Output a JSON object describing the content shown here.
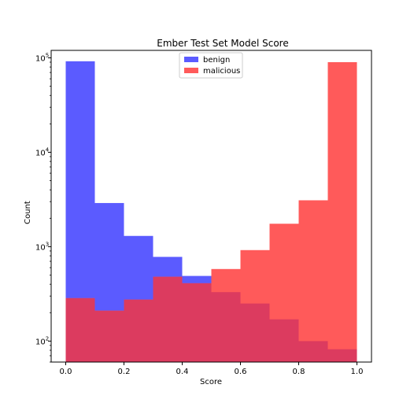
{
  "chart_data": {
    "type": "bar",
    "title": "Ember Test Set Model Score",
    "xlabel": "Score",
    "ylabel": "Count",
    "xlim": [
      -0.05,
      1.05
    ],
    "ylim": [
      60,
      120000
    ],
    "yscale": "log",
    "grid": false,
    "legend_position": "top-center",
    "x_ticks": [
      "0.0",
      "0.2",
      "0.4",
      "0.6",
      "0.8",
      "1.0"
    ],
    "x_tick_values": [
      0.0,
      0.2,
      0.4,
      0.6,
      0.8,
      1.0
    ],
    "y_ticks": [
      {
        "value": 100,
        "base": "10",
        "exp": "2"
      },
      {
        "value": 1000,
        "base": "10",
        "exp": "3"
      },
      {
        "value": 10000,
        "base": "10",
        "exp": "4"
      },
      {
        "value": 100000,
        "base": "10",
        "exp": "5"
      }
    ],
    "bin_edges": [
      0.0,
      0.1,
      0.2,
      0.3,
      0.4,
      0.5,
      0.6,
      0.7,
      0.8,
      0.9,
      1.0
    ],
    "series": [
      {
        "name": "benign",
        "color": "#5b5bff",
        "values": [
          92000,
          2900,
          1300,
          780,
          490,
          330,
          250,
          170,
          100,
          82
        ]
      },
      {
        "name": "malicious",
        "color": "#ff5a5a",
        "values": [
          285,
          210,
          275,
          480,
          410,
          580,
          920,
          1750,
          3100,
          90000
        ]
      }
    ],
    "overlap_color": "#dc3b5f"
  }
}
